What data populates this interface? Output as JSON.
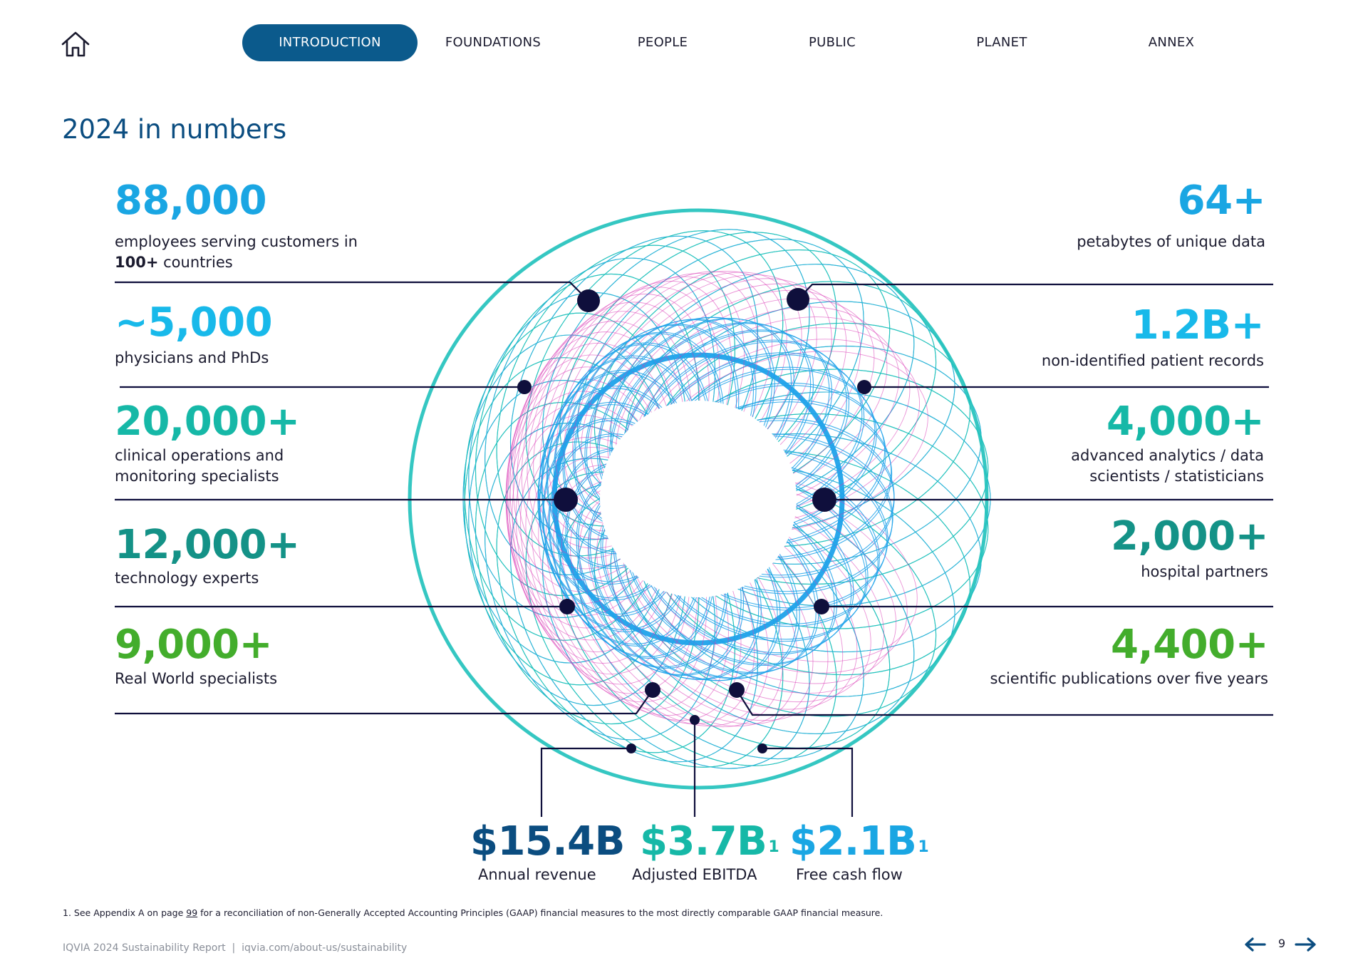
{
  "nav": {
    "home_icon": "home-icon",
    "tabs": [
      {
        "label": "INTRODUCTION",
        "active": true
      },
      {
        "label": "FOUNDATIONS",
        "active": false
      },
      {
        "label": "PEOPLE",
        "active": false
      },
      {
        "label": "PUBLIC",
        "active": false
      },
      {
        "label": "PLANET",
        "active": false
      },
      {
        "label": "ANNEX",
        "active": false
      }
    ]
  },
  "page_title": "2024 in numbers",
  "left_stats": [
    {
      "value": "88,000",
      "desc_html_prefix": "employees serving customers in",
      "desc_bold": "100+",
      "desc_suffix": " countries",
      "color": "#1aa6e3"
    },
    {
      "value": "~5,000",
      "desc": "physicians and PhDs",
      "color": "#18b9ea"
    },
    {
      "value": "20,000+",
      "desc_line1": "clinical operations and",
      "desc_line2": "monitoring specialists",
      "color": "#16b8a7"
    },
    {
      "value": "12,000+",
      "desc": "technology experts",
      "color": "#149287"
    },
    {
      "value": "9,000+",
      "desc": "Real World specialists",
      "color": "#43ad2c"
    }
  ],
  "right_stats": [
    {
      "value": "64+",
      "desc": "petabytes of unique data",
      "color": "#1aa6e3"
    },
    {
      "value": "1.2B+",
      "desc": "non-identified patient records",
      "color": "#18b9ea"
    },
    {
      "value": "4,000+",
      "desc_line1": "advanced analytics / data",
      "desc_line2": "scientists / statisticians",
      "color": "#16b8a7"
    },
    {
      "value": "2,000+",
      "desc": "hospital partners",
      "color": "#149287"
    },
    {
      "value": "4,400+",
      "desc": "scientific publications over five years",
      "color": "#43ad2c"
    }
  ],
  "financials": [
    {
      "value": "$15.4B",
      "sup": "",
      "label": "Annual revenue",
      "color": "#0b4d80"
    },
    {
      "value": "$3.7B",
      "sup": "1",
      "label": "Adjusted EBITDA",
      "color": "#16b8a7"
    },
    {
      "value": "$2.1B",
      "sup": "1",
      "label": "Free cash flow",
      "color": "#1aa6e3"
    }
  ],
  "footnote": {
    "prefix": "1. See Appendix A on page ",
    "page_link": "99",
    "suffix": " for a reconciliation of non-Generally Accepted Accounting Principles (GAAP) financial measures to the most directly comparable GAAP financial measure."
  },
  "footer": {
    "report": "IQVIA 2024 Sustainability Report",
    "separator": "|",
    "url": "iqvia.com/about-us/sustainability"
  },
  "pager": {
    "page": "9",
    "prev_icon": "arrow-left-icon",
    "next_icon": "arrow-right-icon"
  },
  "colors": {
    "nav_active": "#0b5a8c",
    "title": "#0b4d80",
    "dot": "#0f0f3c",
    "ring_teal": "#1fc1bb",
    "ring_blue": "#1fa2ea",
    "ring_magenta": "#d836b4"
  }
}
